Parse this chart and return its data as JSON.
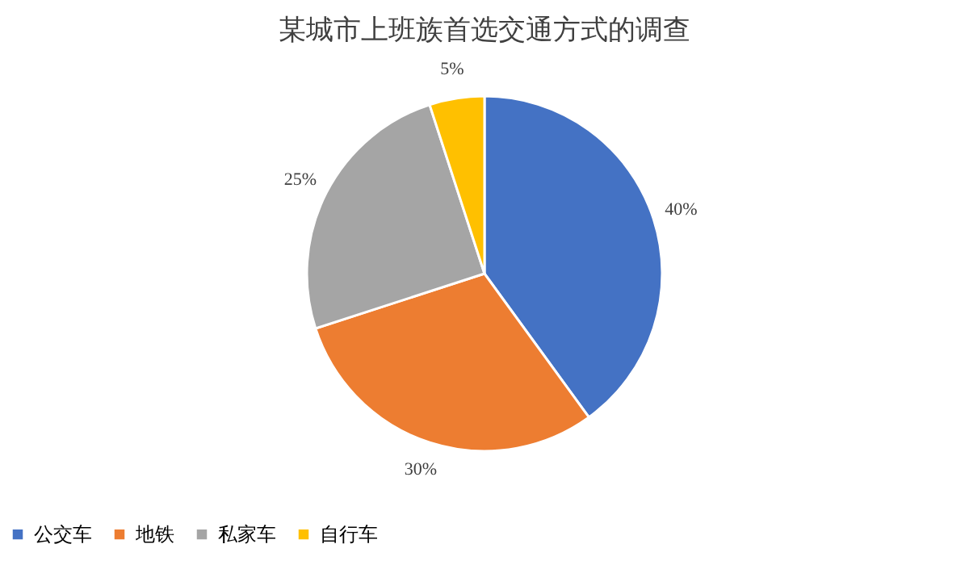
{
  "chart_data": {
    "type": "pie",
    "title": "某城市上班族首选交通方式的调查",
    "categories": [
      "公交车",
      "地铁",
      "私家车",
      "自行车"
    ],
    "values": [
      40,
      30,
      25,
      5
    ],
    "colors": [
      "#4472c4",
      "#ed7d31",
      "#a5a5a5",
      "#ffc000"
    ],
    "value_labels": [
      "40%",
      "30%",
      "25%",
      "5%"
    ],
    "legend": "bottom"
  }
}
